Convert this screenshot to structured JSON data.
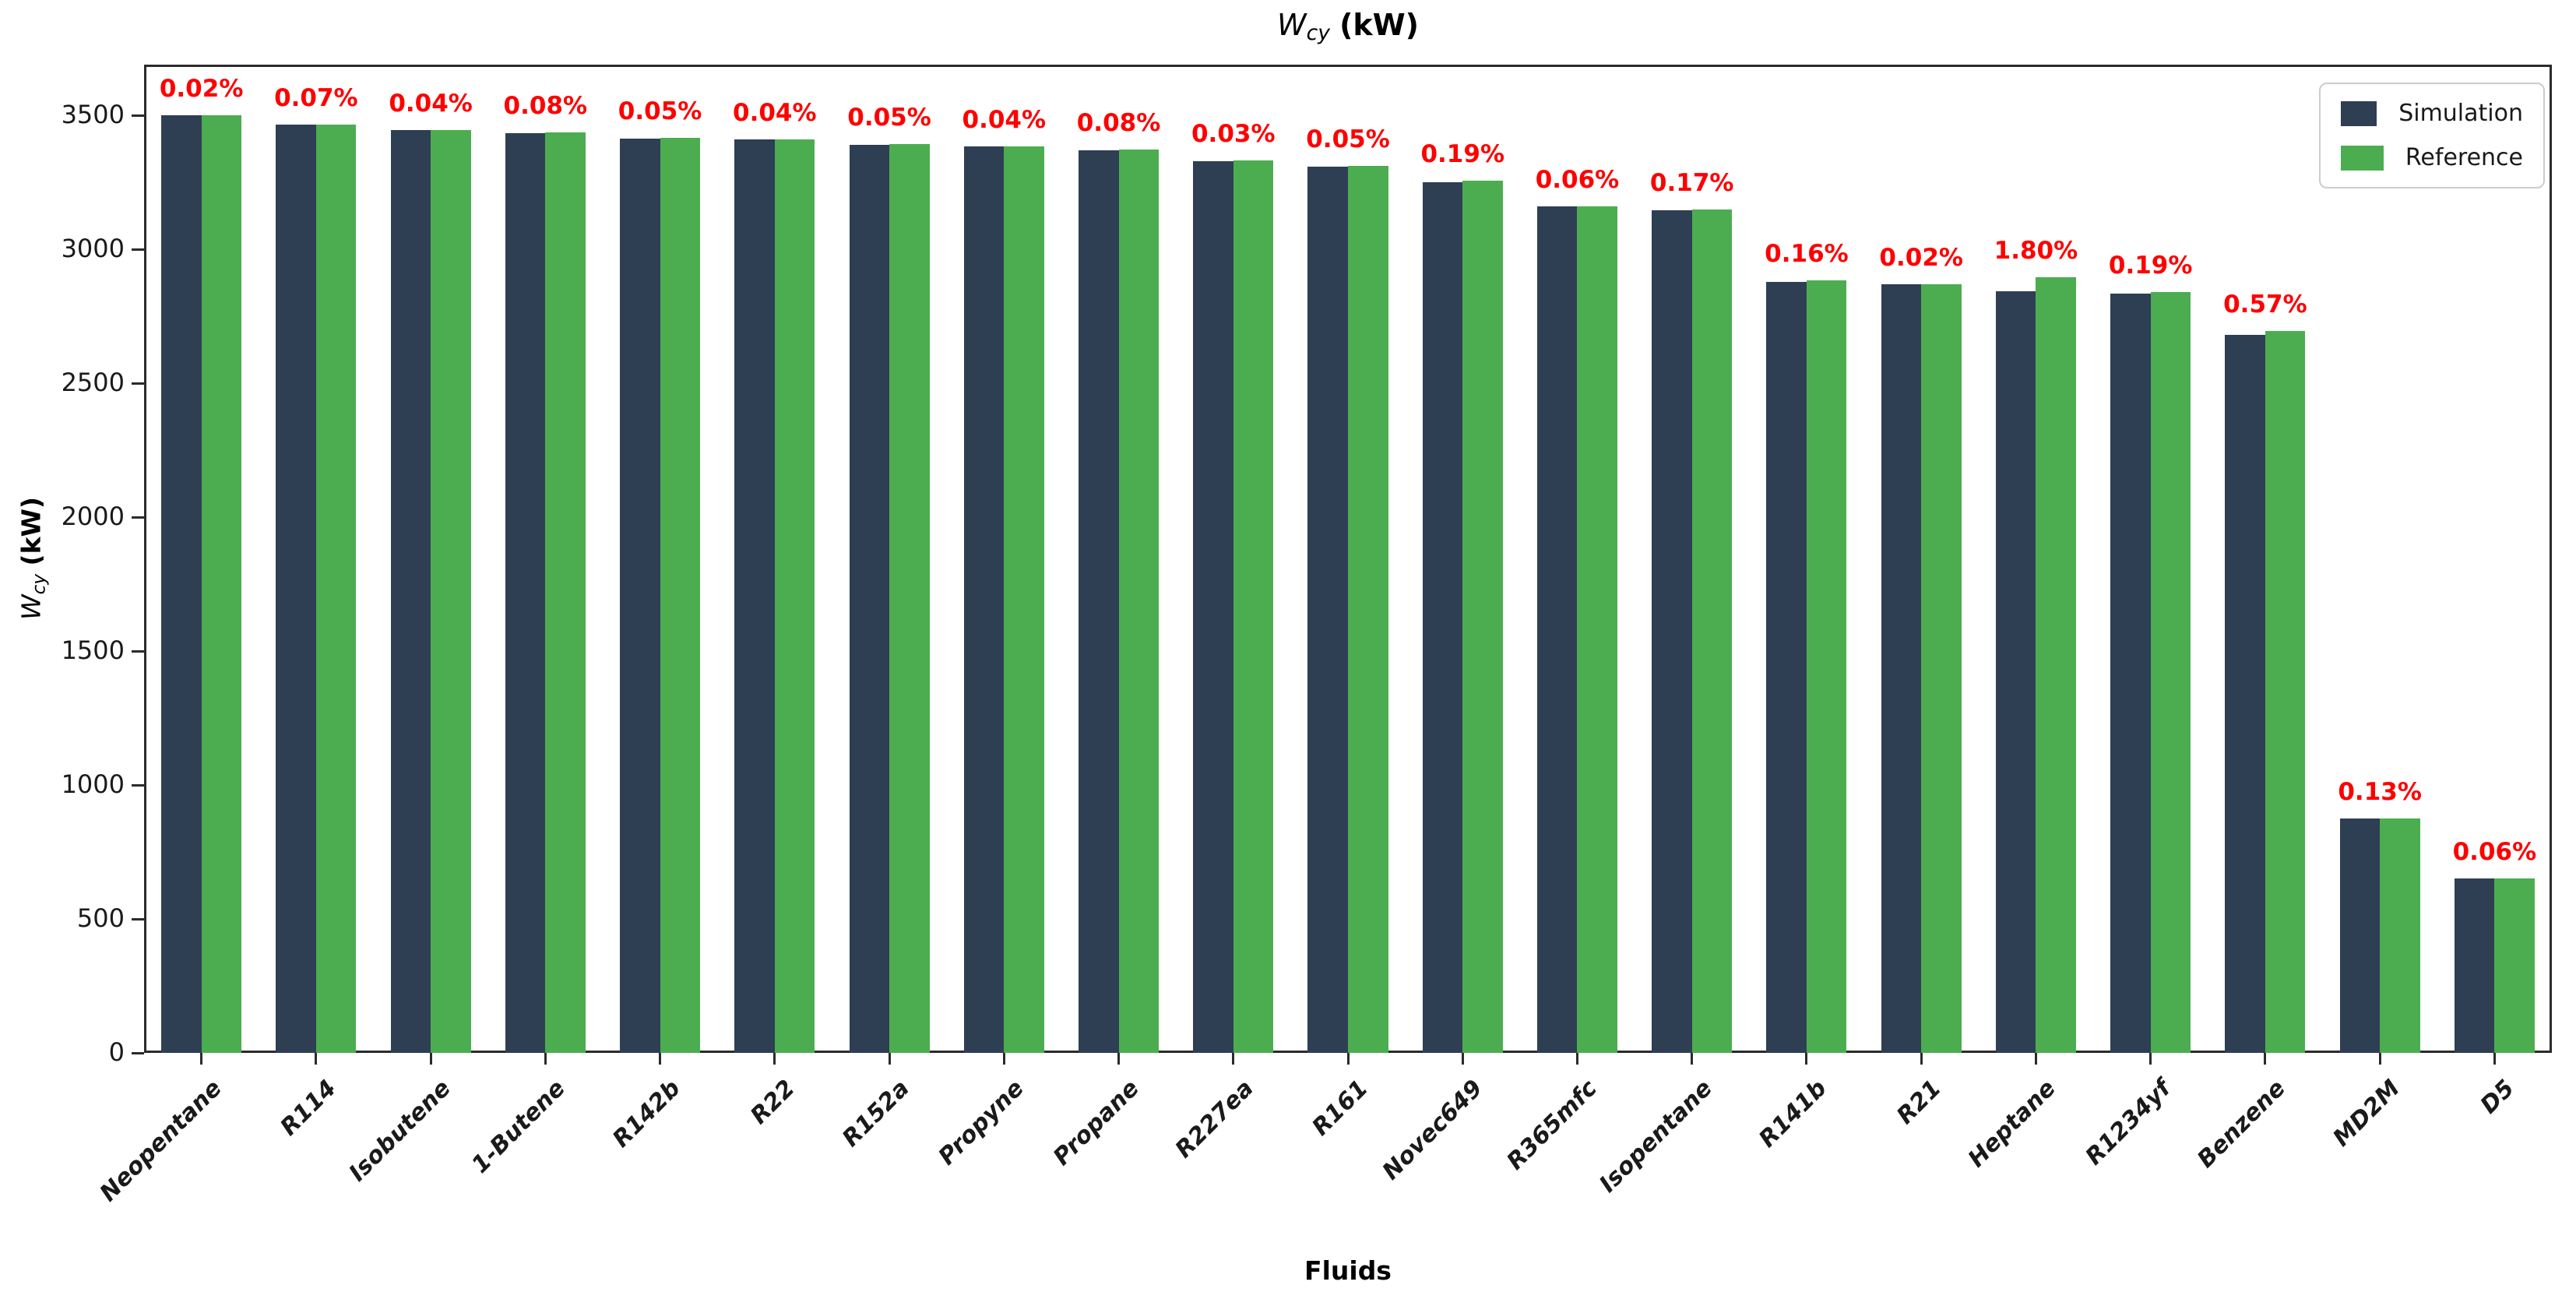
{
  "chart_data": {
    "type": "bar",
    "title_text": "W_cy (kW)",
    "title_parts": {
      "symbol": "W",
      "subscript": "cy",
      "unit": "(kW)"
    },
    "xlabel": "Fluids",
    "ylabel_parts": {
      "symbol": "W",
      "subscript": "cy",
      "unit": "(kW)"
    },
    "ylim": [
      0,
      3690
    ],
    "yticks": [
      0,
      500,
      1000,
      1500,
      2000,
      2500,
      3000,
      3500
    ],
    "grid": false,
    "legend_position": "upper right",
    "categories": [
      "Neopentane",
      "R114",
      "Isobutene",
      "1-Butene",
      "R142b",
      "R22",
      "R152a",
      "Propyne",
      "Propane",
      "R227ea",
      "R161",
      "Novec649",
      "R365mfc",
      "Isopentane",
      "R141b",
      "R21",
      "Heptane",
      "R1234yf",
      "Benzene",
      "MD2M",
      "D5"
    ],
    "series": [
      {
        "name": "Simulation",
        "color": "#2e3f54",
        "values": [
          3500,
          3465,
          3445,
          3435,
          3415,
          3410,
          3390,
          3385,
          3370,
          3330,
          3310,
          3250,
          3160,
          3145,
          2880,
          2870,
          2845,
          2835,
          2680,
          875,
          650
        ]
      },
      {
        "name": "Reference",
        "color": "#4cad50",
        "values": [
          3501,
          3467,
          3446,
          3438,
          3417,
          3411,
          3392,
          3386,
          3373,
          3331,
          3312,
          3256,
          3162,
          3150,
          2885,
          2871,
          2896,
          2840,
          2695,
          876,
          650
        ]
      }
    ],
    "error_labels": [
      "0.02%",
      "0.07%",
      "0.04%",
      "0.08%",
      "0.05%",
      "0.04%",
      "0.05%",
      "0.04%",
      "0.08%",
      "0.03%",
      "0.05%",
      "0.19%",
      "0.06%",
      "0.17%",
      "0.16%",
      "0.02%",
      "1.80%",
      "0.19%",
      "0.57%",
      "0.13%",
      "0.06%"
    ],
    "error_label_color": "#ff0000",
    "axis_color": "#2b2b2b"
  }
}
